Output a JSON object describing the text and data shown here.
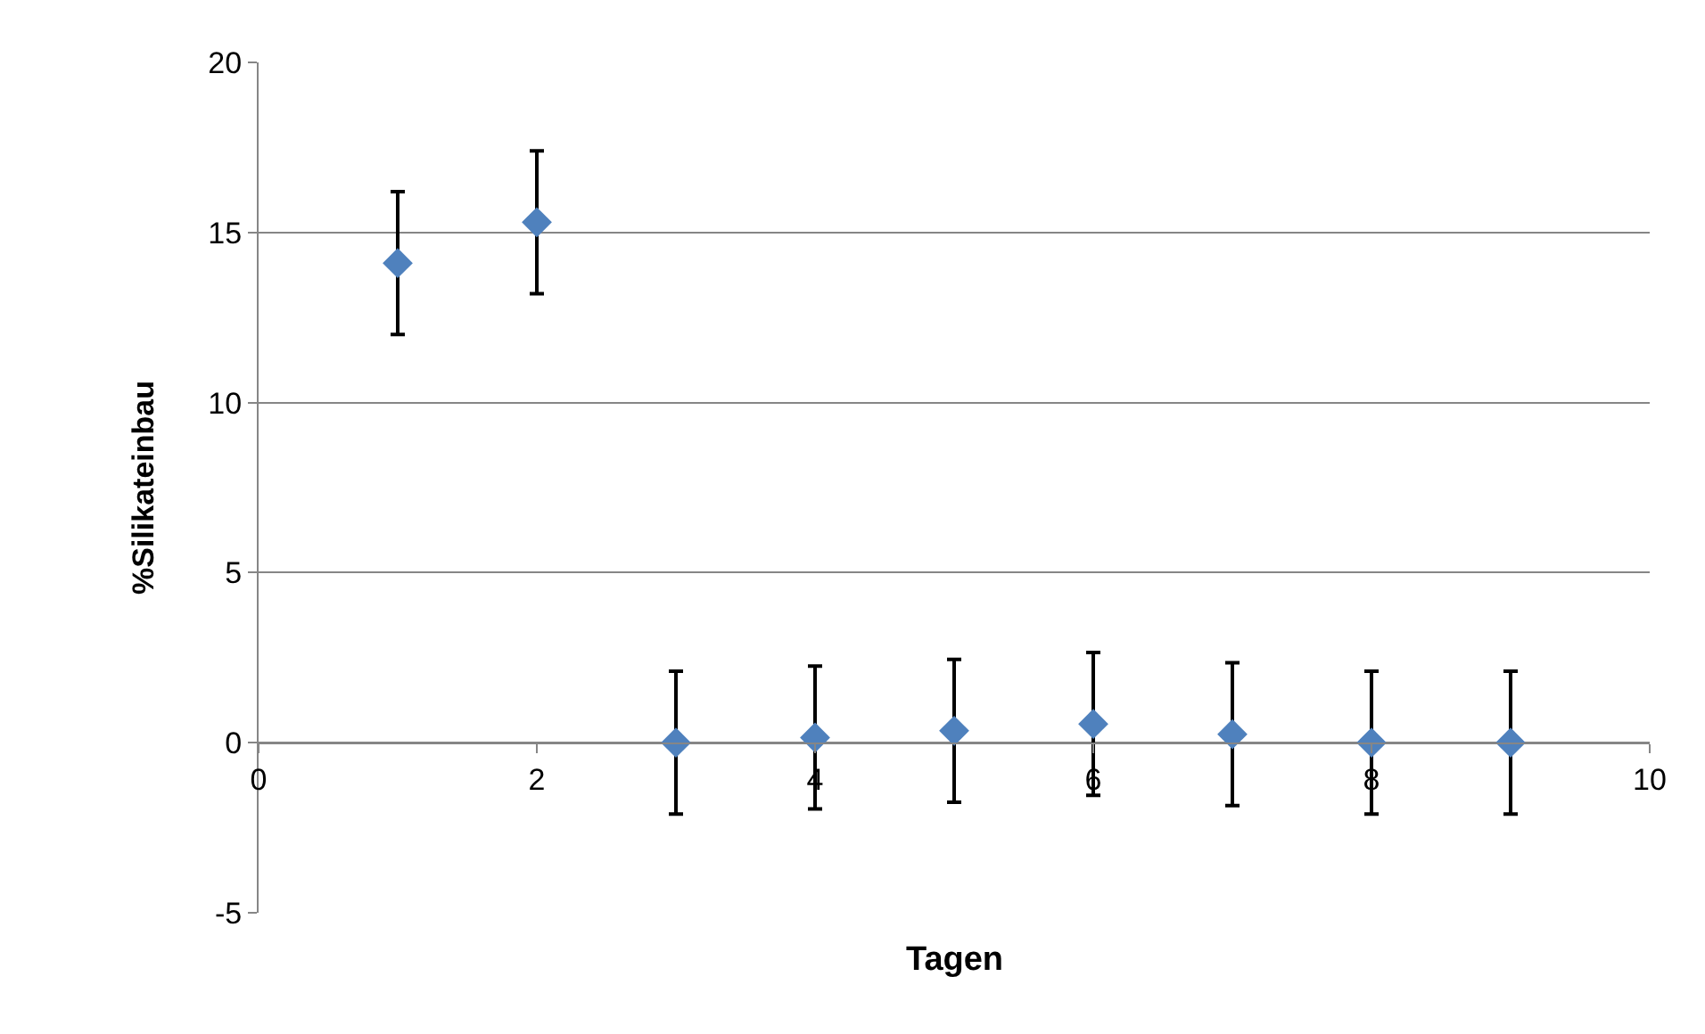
{
  "chart_data": {
    "type": "scatter",
    "xlabel": "Tagen",
    "ylabel": "%Silikateinbau",
    "x": [
      1,
      2,
      3,
      4,
      5,
      6,
      7,
      8,
      9
    ],
    "series": [
      {
        "color": "#4f81bd",
        "values": [
          14.1,
          15.3,
          0,
          0.15,
          0.35,
          0.55,
          0.25,
          0,
          0
        ],
        "errors": [
          2.1,
          2.1,
          2.1,
          2.1,
          2.1,
          2.1,
          2.1,
          2.1,
          2.1
        ]
      }
    ],
    "xlim": [
      0,
      10
    ],
    "xticks": [
      0,
      2,
      4,
      6,
      8,
      10
    ],
    "ylim": [
      -5,
      20
    ],
    "yticks": [
      -5,
      0,
      5,
      10,
      15,
      20
    ],
    "grid": "y",
    "marker": "diamond",
    "legend": false
  }
}
